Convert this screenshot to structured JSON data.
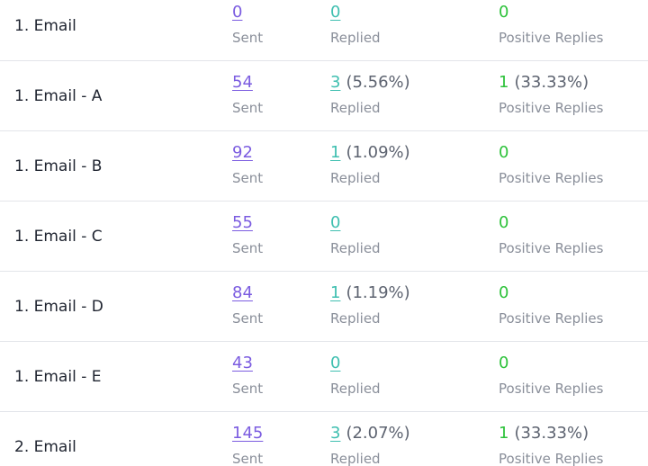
{
  "rows": [
    {
      "name": "1. Email",
      "sent": "0",
      "replied": "0",
      "replied_pct": "",
      "positive": "0",
      "positive_pct": ""
    },
    {
      "name": "1. Email - A",
      "sent": "54",
      "replied": "3",
      "replied_pct": "(5.56%)",
      "positive": "1",
      "positive_pct": "(33.33%)"
    },
    {
      "name": "1. Email - B",
      "sent": "92",
      "replied": "1",
      "replied_pct": "(1.09%)",
      "positive": "0",
      "positive_pct": ""
    },
    {
      "name": "1. Email - C",
      "sent": "55",
      "replied": "0",
      "replied_pct": "",
      "positive": "0",
      "positive_pct": ""
    },
    {
      "name": "1. Email - D",
      "sent": "84",
      "replied": "1",
      "replied_pct": "(1.19%)",
      "positive": "0",
      "positive_pct": ""
    },
    {
      "name": "1. Email - E",
      "sent": "43",
      "replied": "0",
      "replied_pct": "",
      "positive": "0",
      "positive_pct": ""
    },
    {
      "name": "2. Email",
      "sent": "145",
      "replied": "3",
      "replied_pct": "(2.07%)",
      "positive": "1",
      "positive_pct": "(33.33%)"
    }
  ],
  "labels": {
    "sent": "Sent",
    "replied": "Replied",
    "positive": "Positive Replies"
  },
  "colors": {
    "sent_link": "#7b5ce0",
    "replied_link": "#3fbfb0",
    "positive_value": "#2dc23a",
    "caption": "#8a8f9a",
    "divider": "#e3e5ea"
  }
}
